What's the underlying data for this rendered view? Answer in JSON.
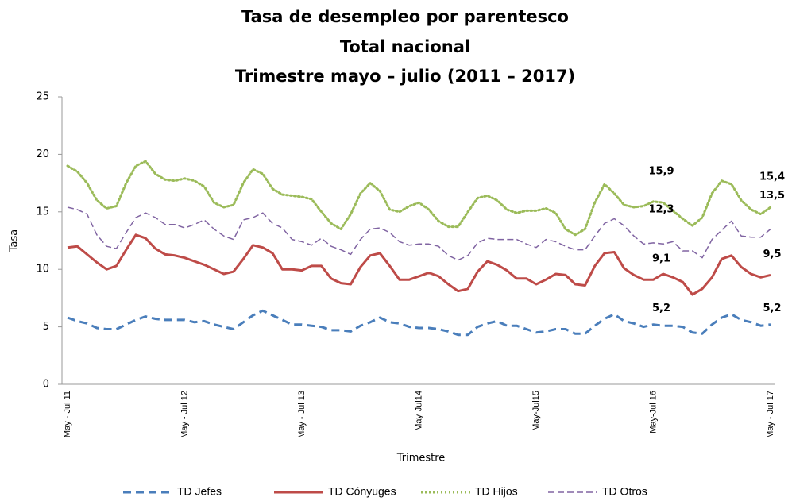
{
  "chart_data": {
    "type": "line",
    "title": [
      "Tasa de desempleo por parentesco",
      "Total nacional",
      "Trimestre mayo – julio (2011 – 2017)"
    ],
    "x_label": "Trimestre",
    "y_label": "Tasa",
    "ylim": [
      0,
      25
    ],
    "yticks": [
      0,
      5,
      10,
      15,
      20,
      25
    ],
    "grid": false,
    "legend": "bottom",
    "categories": [
      "May - Jul 11",
      null,
      null,
      null,
      null,
      null,
      null,
      null,
      null,
      null,
      null,
      null,
      "May - Jul 12",
      null,
      null,
      null,
      null,
      null,
      null,
      null,
      null,
      null,
      null,
      null,
      "May - Jul 13",
      null,
      null,
      null,
      null,
      null,
      null,
      null,
      null,
      null,
      null,
      null,
      "May-Jul14",
      null,
      null,
      null,
      null,
      null,
      null,
      null,
      null,
      null,
      null,
      null,
      "May-Jul15",
      null,
      null,
      null,
      null,
      null,
      null,
      null,
      null,
      null,
      null,
      null,
      "May-Jul 16",
      null,
      null,
      null,
      null,
      null,
      null,
      null,
      null,
      null,
      null,
      null,
      "May - Jul 17"
    ],
    "series": [
      {
        "name": "TD Jefes",
        "color": "#4a7ebb",
        "dash": "10,6",
        "width": 3,
        "values": [
          5.8,
          5.5,
          5.3,
          4.9,
          4.8,
          4.8,
          5.2,
          5.6,
          5.9,
          5.7,
          5.6,
          5.6,
          5.6,
          5.4,
          5.5,
          5.2,
          5.0,
          4.8,
          5.4,
          6.0,
          6.4,
          6.0,
          5.6,
          5.2,
          5.2,
          5.1,
          5.0,
          4.7,
          4.7,
          4.6,
          5.1,
          5.4,
          5.8,
          5.4,
          5.3,
          5.0,
          4.9,
          4.9,
          4.8,
          4.6,
          4.3,
          4.3,
          5.0,
          5.3,
          5.5,
          5.1,
          5.1,
          4.8,
          4.5,
          4.6,
          4.8,
          4.8,
          4.4,
          4.4,
          5.1,
          5.7,
          6.1,
          5.5,
          5.3,
          5.0,
          5.2,
          5.1,
          5.1,
          5.0,
          4.5,
          4.4,
          5.2,
          5.8,
          6.1,
          5.6,
          5.4,
          5.1,
          5.2
        ],
        "value_labels": [
          null,
          null,
          null,
          null,
          null,
          null,
          null,
          null,
          null,
          null,
          null,
          null,
          null,
          null,
          null,
          null,
          null,
          null,
          null,
          null,
          null,
          null,
          null,
          null,
          null,
          null,
          null,
          null,
          null,
          null,
          null,
          null,
          null,
          null,
          null,
          null,
          null,
          null,
          null,
          null,
          null,
          null,
          null,
          null,
          null,
          null,
          null,
          null,
          null,
          null,
          null,
          null,
          null,
          null,
          null,
          null,
          null,
          null,
          null,
          null,
          "5,2",
          null,
          null,
          null,
          null,
          null,
          null,
          null,
          null,
          null,
          null,
          null,
          "5,2"
        ]
      },
      {
        "name": "TD Cónyuges",
        "color": "#be4b48",
        "dash": "none",
        "width": 3,
        "values": [
          11.9,
          12.0,
          11.3,
          10.6,
          10.0,
          10.3,
          11.7,
          13.0,
          12.7,
          11.8,
          11.3,
          11.2,
          11.0,
          10.7,
          10.4,
          10.0,
          9.6,
          9.8,
          10.9,
          12.1,
          11.9,
          11.4,
          10.0,
          10.0,
          9.9,
          10.3,
          10.3,
          9.2,
          8.8,
          8.7,
          10.2,
          11.2,
          11.4,
          10.3,
          9.1,
          9.1,
          9.4,
          9.7,
          9.4,
          8.7,
          8.1,
          8.3,
          9.8,
          10.7,
          10.4,
          9.9,
          9.2,
          9.2,
          8.7,
          9.1,
          9.6,
          9.5,
          8.7,
          8.6,
          10.3,
          11.4,
          11.5,
          10.1,
          9.5,
          9.1,
          9.1,
          9.6,
          9.3,
          8.9,
          7.8,
          8.3,
          9.3,
          10.9,
          11.2,
          10.2,
          9.6,
          9.3,
          9.5
        ],
        "value_labels": [
          null,
          null,
          null,
          null,
          null,
          null,
          null,
          null,
          null,
          null,
          null,
          null,
          null,
          null,
          null,
          null,
          null,
          null,
          null,
          null,
          null,
          null,
          null,
          null,
          null,
          null,
          null,
          null,
          null,
          null,
          null,
          null,
          null,
          null,
          null,
          null,
          null,
          null,
          null,
          null,
          null,
          null,
          null,
          null,
          null,
          null,
          null,
          null,
          null,
          null,
          null,
          null,
          null,
          null,
          null,
          null,
          null,
          null,
          null,
          null,
          "9,1",
          null,
          null,
          null,
          null,
          null,
          null,
          null,
          null,
          null,
          null,
          null,
          "9,5"
        ]
      },
      {
        "name": "TD Hijos",
        "color": "#9bbb59",
        "dash": "2,3",
        "width": 3,
        "values": [
          19.0,
          18.5,
          17.5,
          16.0,
          15.3,
          15.5,
          17.5,
          19.0,
          19.4,
          18.3,
          17.8,
          17.7,
          17.9,
          17.7,
          17.2,
          15.8,
          15.4,
          15.6,
          17.5,
          18.7,
          18.3,
          17.0,
          16.5,
          16.4,
          16.3,
          16.1,
          15.0,
          14.0,
          13.5,
          14.8,
          16.6,
          17.5,
          16.8,
          15.2,
          15.0,
          15.5,
          15.8,
          15.2,
          14.2,
          13.7,
          13.7,
          15.0,
          16.2,
          16.4,
          16.0,
          15.2,
          14.9,
          15.1,
          15.1,
          15.3,
          14.9,
          13.5,
          13.0,
          13.5,
          15.8,
          17.4,
          16.6,
          15.6,
          15.4,
          15.5,
          15.9,
          15.8,
          15.1,
          14.4,
          13.8,
          14.5,
          16.6,
          17.7,
          17.4,
          16.0,
          15.2,
          14.8,
          15.4
        ],
        "value_labels": [
          null,
          null,
          null,
          null,
          null,
          null,
          null,
          null,
          null,
          null,
          null,
          null,
          null,
          null,
          null,
          null,
          null,
          null,
          null,
          null,
          null,
          null,
          null,
          null,
          null,
          null,
          null,
          null,
          null,
          null,
          null,
          null,
          null,
          null,
          null,
          null,
          null,
          null,
          null,
          null,
          null,
          null,
          null,
          null,
          null,
          null,
          null,
          null,
          null,
          null,
          null,
          null,
          null,
          null,
          null,
          null,
          null,
          null,
          null,
          null,
          "15,9",
          null,
          null,
          null,
          null,
          null,
          null,
          null,
          null,
          null,
          null,
          null,
          "15,4"
        ]
      },
      {
        "name": "TD Otros",
        "color": "#8064a2",
        "dash": "8,4",
        "width": 1.5,
        "values": [
          15.4,
          15.2,
          14.8,
          13.0,
          12.0,
          11.8,
          13.2,
          14.5,
          14.9,
          14.5,
          13.9,
          13.9,
          13.6,
          13.9,
          14.3,
          13.5,
          12.9,
          12.6,
          14.3,
          14.5,
          14.9,
          14.0,
          13.6,
          12.6,
          12.4,
          12.1,
          12.7,
          12.0,
          11.7,
          11.3,
          12.6,
          13.5,
          13.6,
          13.2,
          12.4,
          12.1,
          12.2,
          12.2,
          12.0,
          11.2,
          10.8,
          11.2,
          12.3,
          12.7,
          12.6,
          12.6,
          12.6,
          12.2,
          11.9,
          12.6,
          12.4,
          12.0,
          11.7,
          11.7,
          12.9,
          14.0,
          14.4,
          13.8,
          12.9,
          12.2,
          12.3,
          12.2,
          12.4,
          11.6,
          11.6,
          11.0,
          12.6,
          13.4,
          14.2,
          12.9,
          12.8,
          12.8,
          13.5
        ],
        "value_labels": [
          null,
          null,
          null,
          null,
          null,
          null,
          null,
          null,
          null,
          null,
          null,
          null,
          null,
          null,
          null,
          null,
          null,
          null,
          null,
          null,
          null,
          null,
          null,
          null,
          null,
          null,
          null,
          null,
          null,
          null,
          null,
          null,
          null,
          null,
          null,
          null,
          null,
          null,
          null,
          null,
          null,
          null,
          null,
          null,
          null,
          null,
          null,
          null,
          null,
          null,
          null,
          null,
          null,
          null,
          null,
          null,
          null,
          null,
          null,
          null,
          "12,3",
          null,
          null,
          null,
          null,
          null,
          null,
          null,
          null,
          null,
          null,
          null,
          "13,5"
        ]
      }
    ]
  }
}
